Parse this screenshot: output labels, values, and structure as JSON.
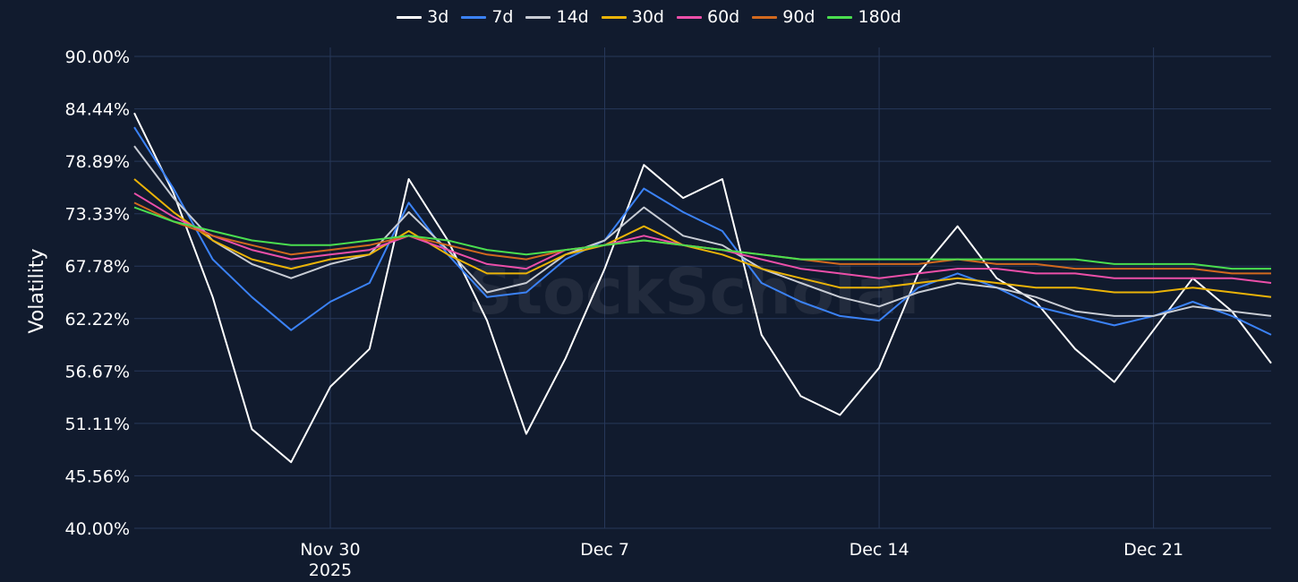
{
  "watermark": "StockScholar",
  "chart_data": {
    "type": "line",
    "title": "",
    "xlabel": "",
    "ylabel": "Volatility",
    "legend_position": "top-center",
    "grid": true,
    "x_range": [
      "2025-11-25",
      "2025-12-24"
    ],
    "ylim": [
      40.0,
      90.0
    ],
    "y_ticks": [
      "40.00%",
      "45.56%",
      "51.11%",
      "56.67%",
      "62.22%",
      "67.78%",
      "73.33%",
      "78.89%",
      "84.44%",
      "90.00%"
    ],
    "x_ticks": [
      {
        "date": "2025-11-30",
        "label": "Nov 30",
        "sublabel": "2025"
      },
      {
        "date": "2025-12-07",
        "label": "Dec 7",
        "sublabel": ""
      },
      {
        "date": "2025-12-14",
        "label": "Dec 14",
        "sublabel": ""
      },
      {
        "date": "2025-12-21",
        "label": "Dec 21",
        "sublabel": ""
      }
    ],
    "colors": {
      "background": "#111b2e",
      "grid": "#27385a"
    },
    "series": [
      {
        "name": "3d",
        "color": "#ffffff",
        "x": [
          "2025-11-25",
          "2025-11-26",
          "2025-11-27",
          "2025-11-28",
          "2025-11-29",
          "2025-11-30",
          "2025-12-01",
          "2025-12-02",
          "2025-12-03",
          "2025-12-04",
          "2025-12-05",
          "2025-12-06",
          "2025-12-07",
          "2025-12-08",
          "2025-12-09",
          "2025-12-10",
          "2025-12-11",
          "2025-12-12",
          "2025-12-13",
          "2025-12-14",
          "2025-12-15",
          "2025-12-16",
          "2025-12-17",
          "2025-12-18",
          "2025-12-19",
          "2025-12-20",
          "2025-12-21",
          "2025-12-22",
          "2025-12-23",
          "2025-12-24"
        ],
        "y": [
          84.0,
          75.5,
          64.5,
          50.5,
          47.0,
          55.0,
          59.0,
          77.0,
          70.5,
          62.0,
          50.0,
          58.0,
          67.5,
          78.5,
          75.0,
          77.0,
          60.5,
          54.0,
          52.0,
          57.0,
          67.0,
          72.0,
          66.5,
          64.0,
          59.0,
          55.5,
          61.0,
          66.5,
          63.0,
          57.5
        ]
      },
      {
        "name": "7d",
        "color": "#3b82f6",
        "x": [
          "2025-11-25",
          "2025-11-26",
          "2025-11-27",
          "2025-11-28",
          "2025-11-29",
          "2025-11-30",
          "2025-12-01",
          "2025-12-02",
          "2025-12-03",
          "2025-12-04",
          "2025-12-05",
          "2025-12-06",
          "2025-12-07",
          "2025-12-08",
          "2025-12-09",
          "2025-12-10",
          "2025-12-11",
          "2025-12-12",
          "2025-12-13",
          "2025-12-14",
          "2025-12-15",
          "2025-12-16",
          "2025-12-17",
          "2025-12-18",
          "2025-12-19",
          "2025-12-20",
          "2025-12-21",
          "2025-12-22",
          "2025-12-23",
          "2025-12-24"
        ],
        "y": [
          82.5,
          76.0,
          68.5,
          64.5,
          61.0,
          64.0,
          66.0,
          74.5,
          69.0,
          64.5,
          65.0,
          68.5,
          70.5,
          76.0,
          73.5,
          71.5,
          66.0,
          64.0,
          62.5,
          62.0,
          65.5,
          67.0,
          65.5,
          63.5,
          62.5,
          61.5,
          62.5,
          64.0,
          62.5,
          60.5
        ]
      },
      {
        "name": "14d",
        "color": "#c8ccd4",
        "x": [
          "2025-11-25",
          "2025-11-26",
          "2025-11-27",
          "2025-11-28",
          "2025-11-29",
          "2025-11-30",
          "2025-12-01",
          "2025-12-02",
          "2025-12-03",
          "2025-12-04",
          "2025-12-05",
          "2025-12-06",
          "2025-12-07",
          "2025-12-08",
          "2025-12-09",
          "2025-12-10",
          "2025-12-11",
          "2025-12-12",
          "2025-12-13",
          "2025-12-14",
          "2025-12-15",
          "2025-12-16",
          "2025-12-17",
          "2025-12-18",
          "2025-12-19",
          "2025-12-20",
          "2025-12-21",
          "2025-12-22",
          "2025-12-23",
          "2025-12-24"
        ],
        "y": [
          80.5,
          75.0,
          70.5,
          68.0,
          66.5,
          68.0,
          69.0,
          73.5,
          69.5,
          65.0,
          66.0,
          69.0,
          70.5,
          74.0,
          71.0,
          70.0,
          67.5,
          66.0,
          64.5,
          63.5,
          65.0,
          66.0,
          65.5,
          64.5,
          63.0,
          62.5,
          62.5,
          63.5,
          63.0,
          62.5
        ]
      },
      {
        "name": "30d",
        "color": "#eab308",
        "x": [
          "2025-11-25",
          "2025-11-26",
          "2025-11-27",
          "2025-11-28",
          "2025-11-29",
          "2025-11-30",
          "2025-12-01",
          "2025-12-02",
          "2025-12-03",
          "2025-12-04",
          "2025-12-05",
          "2025-12-06",
          "2025-12-07",
          "2025-12-08",
          "2025-12-09",
          "2025-12-10",
          "2025-12-11",
          "2025-12-12",
          "2025-12-13",
          "2025-12-14",
          "2025-12-15",
          "2025-12-16",
          "2025-12-17",
          "2025-12-18",
          "2025-12-19",
          "2025-12-20",
          "2025-12-21",
          "2025-12-22",
          "2025-12-23",
          "2025-12-24"
        ],
        "y": [
          77.0,
          73.5,
          70.5,
          68.5,
          67.5,
          68.5,
          69.0,
          71.5,
          69.0,
          67.0,
          67.0,
          69.0,
          70.0,
          72.0,
          70.0,
          69.0,
          67.5,
          66.5,
          65.5,
          65.5,
          66.0,
          66.5,
          66.0,
          65.5,
          65.5,
          65.0,
          65.0,
          65.5,
          65.0,
          64.5
        ]
      },
      {
        "name": "60d",
        "color": "#ec4fa9",
        "x": [
          "2025-11-25",
          "2025-11-26",
          "2025-11-27",
          "2025-11-28",
          "2025-11-29",
          "2025-11-30",
          "2025-12-01",
          "2025-12-02",
          "2025-12-03",
          "2025-12-04",
          "2025-12-05",
          "2025-12-06",
          "2025-12-07",
          "2025-12-08",
          "2025-12-09",
          "2025-12-10",
          "2025-12-11",
          "2025-12-12",
          "2025-12-13",
          "2025-12-14",
          "2025-12-15",
          "2025-12-16",
          "2025-12-17",
          "2025-12-18",
          "2025-12-19",
          "2025-12-20",
          "2025-12-21",
          "2025-12-22",
          "2025-12-23",
          "2025-12-24"
        ],
        "y": [
          75.5,
          73.0,
          71.0,
          69.5,
          68.5,
          69.0,
          69.5,
          71.0,
          69.5,
          68.0,
          67.5,
          69.5,
          70.0,
          71.0,
          70.0,
          69.5,
          68.5,
          67.5,
          67.0,
          66.5,
          67.0,
          67.5,
          67.5,
          67.0,
          67.0,
          66.5,
          66.5,
          66.5,
          66.5,
          66.0
        ]
      },
      {
        "name": "90d",
        "color": "#d2691e",
        "x": [
          "2025-11-25",
          "2025-11-26",
          "2025-11-27",
          "2025-11-28",
          "2025-11-29",
          "2025-11-30",
          "2025-12-01",
          "2025-12-02",
          "2025-12-03",
          "2025-12-04",
          "2025-12-05",
          "2025-12-06",
          "2025-12-07",
          "2025-12-08",
          "2025-12-09",
          "2025-12-10",
          "2025-12-11",
          "2025-12-12",
          "2025-12-13",
          "2025-12-14",
          "2025-12-15",
          "2025-12-16",
          "2025-12-17",
          "2025-12-18",
          "2025-12-19",
          "2025-12-20",
          "2025-12-21",
          "2025-12-22",
          "2025-12-23",
          "2025-12-24"
        ],
        "y": [
          74.5,
          72.5,
          71.0,
          70.0,
          69.0,
          69.5,
          70.0,
          71.0,
          70.0,
          69.0,
          68.5,
          69.5,
          70.0,
          70.5,
          70.0,
          69.5,
          69.0,
          68.5,
          68.0,
          68.0,
          68.0,
          68.5,
          68.0,
          68.0,
          67.5,
          67.5,
          67.5,
          67.5,
          67.0,
          67.0
        ]
      },
      {
        "name": "180d",
        "color": "#4ade4f",
        "x": [
          "2025-11-25",
          "2025-11-26",
          "2025-11-27",
          "2025-11-28",
          "2025-11-29",
          "2025-11-30",
          "2025-12-01",
          "2025-12-02",
          "2025-12-03",
          "2025-12-04",
          "2025-12-05",
          "2025-12-06",
          "2025-12-07",
          "2025-12-08",
          "2025-12-09",
          "2025-12-10",
          "2025-12-11",
          "2025-12-12",
          "2025-12-13",
          "2025-12-14",
          "2025-12-15",
          "2025-12-16",
          "2025-12-17",
          "2025-12-18",
          "2025-12-19",
          "2025-12-20",
          "2025-12-21",
          "2025-12-22",
          "2025-12-23",
          "2025-12-24"
        ],
        "y": [
          74.0,
          72.5,
          71.5,
          70.5,
          70.0,
          70.0,
          70.5,
          71.0,
          70.5,
          69.5,
          69.0,
          69.5,
          70.0,
          70.5,
          70.0,
          69.5,
          69.0,
          68.5,
          68.5,
          68.5,
          68.5,
          68.5,
          68.5,
          68.5,
          68.5,
          68.0,
          68.0,
          68.0,
          67.5,
          67.5
        ]
      }
    ]
  }
}
